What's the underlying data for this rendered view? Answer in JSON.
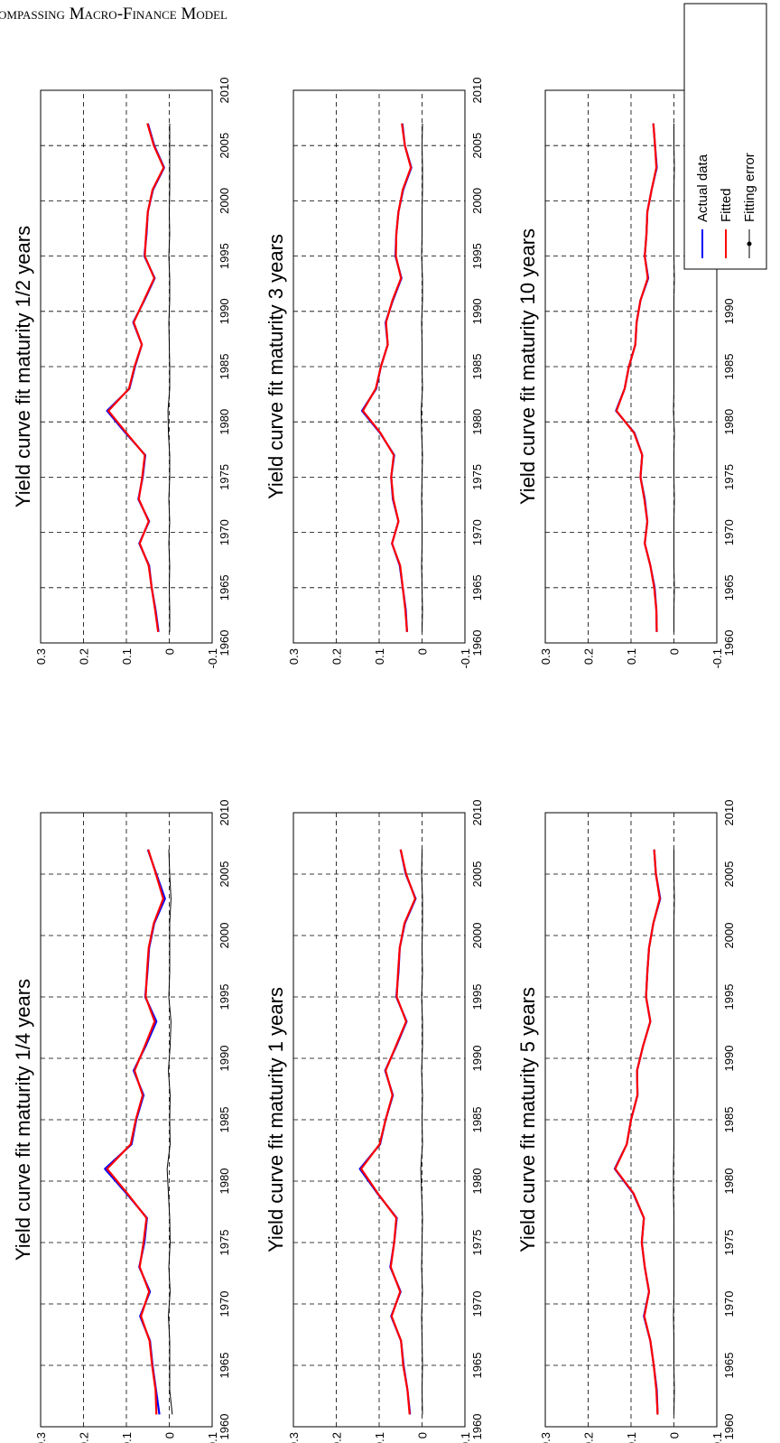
{
  "header": "ompassing Macro-Finance Model",
  "chart_data": [
    {
      "type": "line",
      "title": "Yield curve fit maturity 1/4 years",
      "x": [
        1961,
        1963,
        1965,
        1967,
        1969,
        1971,
        1973,
        1975,
        1977,
        1979,
        1981,
        1983,
        1985,
        1987,
        1989,
        1991,
        1993,
        1995,
        1997,
        1999,
        2001,
        2003,
        2005,
        2007
      ],
      "series": [
        {
          "color": "#0000ff",
          "values": [
            0.023,
            0.031,
            0.039,
            0.045,
            0.068,
            0.045,
            0.07,
            0.058,
            0.052,
            0.1,
            0.15,
            0.088,
            0.077,
            0.06,
            0.083,
            0.055,
            0.03,
            0.056,
            0.051,
            0.047,
            0.035,
            0.01,
            0.03,
            0.05
          ]
        },
        {
          "color": "#ff0000",
          "values": [
            0.03,
            0.032,
            0.04,
            0.046,
            0.066,
            0.047,
            0.069,
            0.06,
            0.053,
            0.098,
            0.145,
            0.09,
            0.078,
            0.062,
            0.081,
            0.057,
            0.034,
            0.055,
            0.052,
            0.048,
            0.036,
            0.014,
            0.031,
            0.049
          ]
        },
        {
          "color": "#000000",
          "values": [
            -0.007,
            -0.001,
            -0.001,
            -0.001,
            0.002,
            -0.002,
            0.001,
            -0.002,
            -0.001,
            0.002,
            0.005,
            -0.002,
            -0.001,
            -0.002,
            0.002,
            -0.002,
            -0.004,
            0.001,
            -0.001,
            -0.001,
            -0.001,
            -0.004,
            -0.001,
            0.001
          ]
        }
      ],
      "xlim": [
        1960,
        2010
      ],
      "xticks": [
        1960,
        1965,
        1970,
        1975,
        1980,
        1985,
        1990,
        1995,
        2000,
        2005,
        2010
      ],
      "ylim": [
        -0.1,
        0.3
      ],
      "yticks": [
        -0.1,
        0,
        0.1,
        0.2,
        0.3
      ],
      "grid": true
    },
    {
      "type": "line",
      "title": "Yield curve fit maturity 1/2 years",
      "x": [
        1961,
        1963,
        1965,
        1967,
        1969,
        1971,
        1973,
        1975,
        1977,
        1979,
        1981,
        1983,
        1985,
        1987,
        1989,
        1991,
        1993,
        1995,
        1997,
        1999,
        2001,
        2003,
        2005,
        2007
      ],
      "series": [
        {
          "color": "#0000ff",
          "values": [
            0.025,
            0.032,
            0.041,
            0.047,
            0.07,
            0.047,
            0.072,
            0.062,
            0.056,
            0.102,
            0.145,
            0.093,
            0.08,
            0.064,
            0.084,
            0.058,
            0.034,
            0.058,
            0.053,
            0.05,
            0.038,
            0.012,
            0.035,
            0.05
          ]
        },
        {
          "color": "#ff0000",
          "values": [
            0.026,
            0.033,
            0.041,
            0.048,
            0.069,
            0.048,
            0.071,
            0.063,
            0.057,
            0.1,
            0.142,
            0.094,
            0.081,
            0.064,
            0.083,
            0.059,
            0.035,
            0.057,
            0.054,
            0.05,
            0.039,
            0.013,
            0.036,
            0.051
          ]
        },
        {
          "color": "#000000",
          "values": [
            -0.001,
            -0.001,
            0,
            -0.001,
            0.001,
            -0.001,
            0.001,
            -0.001,
            -0.001,
            0.002,
            0.003,
            -0.001,
            -0.001,
            0,
            0.001,
            -0.001,
            -0.001,
            0.001,
            -0.001,
            0,
            -0.001,
            -0.001,
            -0.001,
            -0.001
          ]
        }
      ],
      "xlim": [
        1960,
        2010
      ],
      "xticks": [
        1960,
        1965,
        1970,
        1975,
        1980,
        1985,
        1990,
        1995,
        2000,
        2005,
        2010
      ],
      "ylim": [
        -0.1,
        0.3
      ],
      "yticks": [
        -0.1,
        0,
        0.1,
        0.2,
        0.3
      ],
      "grid": true
    },
    {
      "type": "line",
      "title": "Yield curve fit maturity 1 years",
      "x": [
        1961,
        1963,
        1965,
        1967,
        1969,
        1971,
        1973,
        1975,
        1977,
        1979,
        1981,
        1983,
        1985,
        1987,
        1989,
        1991,
        1993,
        1995,
        1997,
        1999,
        2001,
        2003,
        2005,
        2007
      ],
      "series": [
        {
          "color": "#0000ff",
          "values": [
            0.028,
            0.034,
            0.043,
            0.049,
            0.072,
            0.05,
            0.074,
            0.065,
            0.059,
            0.104,
            0.145,
            0.098,
            0.085,
            0.068,
            0.086,
            0.06,
            0.036,
            0.06,
            0.055,
            0.052,
            0.04,
            0.015,
            0.038,
            0.05
          ]
        },
        {
          "color": "#ff0000",
          "values": [
            0.029,
            0.034,
            0.044,
            0.049,
            0.071,
            0.051,
            0.073,
            0.065,
            0.06,
            0.103,
            0.142,
            0.099,
            0.085,
            0.069,
            0.085,
            0.061,
            0.037,
            0.059,
            0.056,
            0.052,
            0.041,
            0.016,
            0.037,
            0.05
          ]
        },
        {
          "color": "#000000",
          "values": [
            -0.001,
            0,
            -0.001,
            0,
            0.001,
            -0.001,
            0.001,
            0,
            -0.001,
            0.001,
            0.003,
            -0.001,
            0,
            -0.001,
            0.001,
            -0.001,
            -0.001,
            0.001,
            -0.001,
            0,
            -0.001,
            -0.001,
            0.001,
            0
          ]
        }
      ],
      "xlim": [
        1960,
        2010
      ],
      "xticks": [
        1960,
        1965,
        1970,
        1975,
        1980,
        1985,
        1990,
        1995,
        2000,
        2005,
        2010
      ],
      "ylim": [
        -0.1,
        0.3
      ],
      "yticks": [
        -0.1,
        0,
        0.1,
        0.2,
        0.3
      ],
      "grid": true
    },
    {
      "type": "line",
      "title": "Yield curve fit maturity 3 years",
      "x": [
        1961,
        1963,
        1965,
        1967,
        1969,
        1971,
        1973,
        1975,
        1977,
        1979,
        1981,
        1983,
        1985,
        1987,
        1989,
        1991,
        1993,
        1995,
        1997,
        1999,
        2001,
        2003,
        2005,
        2007
      ],
      "series": [
        {
          "color": "#0000ff",
          "values": [
            0.035,
            0.038,
            0.045,
            0.052,
            0.07,
            0.055,
            0.068,
            0.072,
            0.065,
            0.098,
            0.14,
            0.107,
            0.096,
            0.08,
            0.085,
            0.068,
            0.048,
            0.062,
            0.06,
            0.055,
            0.044,
            0.025,
            0.04,
            0.046
          ]
        },
        {
          "color": "#ff0000",
          "values": [
            0.035,
            0.039,
            0.045,
            0.051,
            0.07,
            0.055,
            0.067,
            0.072,
            0.066,
            0.097,
            0.138,
            0.108,
            0.096,
            0.08,
            0.084,
            0.069,
            0.049,
            0.061,
            0.06,
            0.055,
            0.045,
            0.026,
            0.04,
            0.047
          ]
        },
        {
          "color": "#000000",
          "values": [
            0,
            -0.001,
            0,
            0.001,
            0,
            0,
            0.001,
            0,
            -0.001,
            0.001,
            0.002,
            -0.001,
            0,
            0,
            0.001,
            -0.001,
            -0.001,
            0.001,
            0,
            0,
            -0.001,
            -0.001,
            0,
            -0.001
          ]
        }
      ],
      "xlim": [
        1960,
        2010
      ],
      "xticks": [
        1960,
        1965,
        1970,
        1975,
        1980,
        1985,
        1990,
        1995,
        2000,
        2005,
        2010
      ],
      "ylim": [
        -0.1,
        0.3
      ],
      "yticks": [
        -0.1,
        0,
        0.1,
        0.2,
        0.3
      ],
      "grid": true
    },
    {
      "type": "line",
      "title": "Yield curve fit maturity 5 years",
      "x": [
        1961,
        1963,
        1965,
        1967,
        1969,
        1971,
        1973,
        1975,
        1977,
        1979,
        1981,
        1983,
        1985,
        1987,
        1989,
        1991,
        1993,
        1995,
        1997,
        1999,
        2001,
        2003,
        2005,
        2007
      ],
      "series": [
        {
          "color": "#0000ff",
          "values": [
            0.038,
            0.04,
            0.047,
            0.055,
            0.07,
            0.058,
            0.068,
            0.075,
            0.07,
            0.095,
            0.138,
            0.11,
            0.1,
            0.085,
            0.086,
            0.072,
            0.055,
            0.065,
            0.062,
            0.058,
            0.048,
            0.032,
            0.042,
            0.046
          ]
        },
        {
          "color": "#ff0000",
          "values": [
            0.038,
            0.041,
            0.047,
            0.055,
            0.069,
            0.058,
            0.068,
            0.075,
            0.07,
            0.094,
            0.137,
            0.11,
            0.1,
            0.085,
            0.086,
            0.072,
            0.055,
            0.065,
            0.062,
            0.058,
            0.048,
            0.033,
            0.042,
            0.046
          ]
        },
        {
          "color": "#000000",
          "values": [
            0,
            -0.001,
            0,
            0,
            0.001,
            0,
            0,
            0,
            0,
            0.001,
            0.001,
            0,
            0,
            0,
            0,
            0,
            0,
            0,
            0,
            0,
            0,
            -0.001,
            0,
            0
          ]
        }
      ],
      "xlim": [
        1960,
        2010
      ],
      "xticks": [
        1960,
        1965,
        1970,
        1975,
        1980,
        1985,
        1990,
        1995,
        2000,
        2005,
        2010
      ],
      "ylim": [
        -0.1,
        0.3
      ],
      "yticks": [
        -0.1,
        0,
        0.1,
        0.2,
        0.3
      ],
      "grid": true
    },
    {
      "type": "line",
      "title": "Yield curve fit maturity 10 years",
      "x": [
        1961,
        1963,
        1965,
        1967,
        1969,
        1971,
        1973,
        1975,
        1977,
        1979,
        1981,
        1983,
        1985,
        1987,
        1989,
        1991,
        1993,
        1995,
        1997,
        1999,
        2001,
        2003,
        2005,
        2007
      ],
      "series": [
        {
          "name": "Actual data",
          "color": "#0000ff",
          "values": [
            0.04,
            0.041,
            0.045,
            0.055,
            0.068,
            0.062,
            0.068,
            0.078,
            0.074,
            0.092,
            0.135,
            0.115,
            0.105,
            0.09,
            0.087,
            0.078,
            0.06,
            0.068,
            0.064,
            0.062,
            0.052,
            0.04,
            0.044,
            0.048
          ]
        },
        {
          "name": "Fitted",
          "color": "#ff0000",
          "values": [
            0.04,
            0.041,
            0.046,
            0.055,
            0.068,
            0.062,
            0.069,
            0.078,
            0.074,
            0.093,
            0.134,
            0.115,
            0.105,
            0.09,
            0.087,
            0.078,
            0.061,
            0.068,
            0.064,
            0.062,
            0.052,
            0.041,
            0.044,
            0.048
          ]
        },
        {
          "name": "Fitting error",
          "color": "#000000",
          "values": [
            0,
            0,
            -0.001,
            0,
            0,
            0,
            -0.001,
            0,
            0,
            -0.001,
            0.001,
            0,
            0,
            0,
            0,
            0,
            -0.001,
            0,
            0,
            0,
            0,
            -0.001,
            0,
            0
          ]
        }
      ],
      "xlim": [
        1960,
        2010
      ],
      "xticks": [
        1960,
        1965,
        1970,
        1975,
        1980,
        1985,
        1990,
        1995,
        2000,
        2005,
        2010
      ],
      "ylim": [
        -0.1,
        0.3
      ],
      "yticks": [
        -0.1,
        0,
        0.1,
        0.2,
        0.3
      ],
      "grid": true,
      "legend": "lower right"
    }
  ]
}
